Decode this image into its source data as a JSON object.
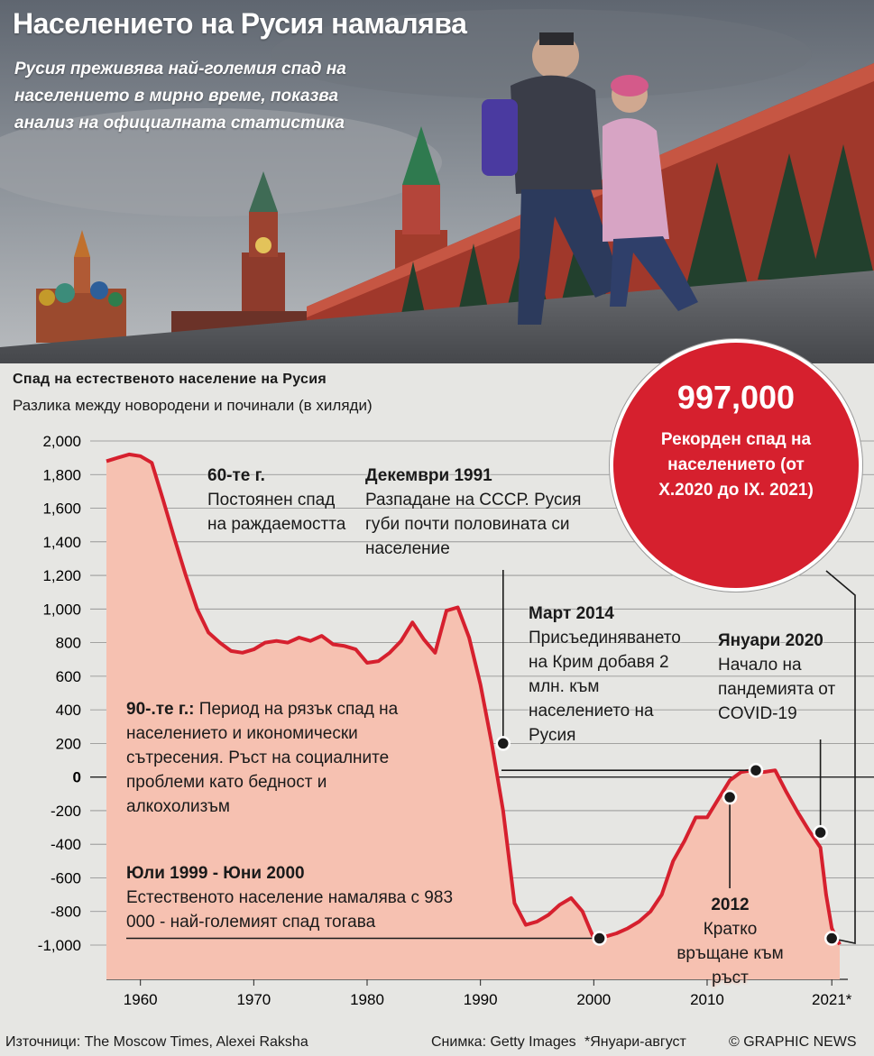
{
  "header": {
    "title": "Населението на Русия намалява",
    "subtitle": "Русия преживява най-големия спад на населението в мирно време, показва анализ на официалната статистика"
  },
  "record": {
    "value": "997,000",
    "text": "Рекорден спад на населението (от X.2020 до IX. 2021)"
  },
  "annotations": {
    "sixties": {
      "title": "60-те г.",
      "text": "Постоянен спад на раждаемостта"
    },
    "dec1991": {
      "title": "Декември 1991",
      "text": "Разпадане на СССР. Русия губи почти половината си население"
    },
    "mar2014": {
      "title": "Март 2014",
      "text": "Присъединяването на Крим добавя 2 млн. към населението на Русия"
    },
    "jan2020": {
      "title": "Януари 2020",
      "text": "Начало на пандемията от COVID-19"
    },
    "nineties": {
      "title": "90-.те г.:",
      "text": "Период на рязък спад на населението и икономически сътресения. Ръст на социалните проблеми като бедност и алкохолизъм"
    },
    "jul1999": {
      "title": "Юли 1999 - Юни 2000",
      "text": "Естественото население намалява с 983 000 - най-големият спад тогава"
    },
    "y2012": {
      "title": "2012",
      "text": "Кратко връщане към ръст"
    }
  },
  "footer": {
    "sources": "Източници: The Moscow Times, Alexei Raksha",
    "photo": "Снимка: Getty Images",
    "note": "*Януари-август",
    "copyright": "© GRAPHIC NEWS"
  },
  "colors": {
    "line": "#d6202e",
    "fill": "#f6c1b1",
    "circle": "#d6202e",
    "background": "#e6e6e3"
  },
  "chart_data": {
    "type": "area",
    "title": "Спад на естественото население на Русия",
    "subtitle": "Разлика между новородени и починали (в хиляди)",
    "xlabel": "",
    "ylabel": "",
    "xlim": [
      1957,
      2021.7
    ],
    "ylim": [
      -1000,
      2000
    ],
    "yticks": [
      2000,
      1800,
      1600,
      1400,
      1200,
      1000,
      800,
      600,
      400,
      200,
      0,
      -200,
      -400,
      -600,
      -800,
      -1000
    ],
    "ytick_labels": [
      "2,000",
      "1,800",
      "1,600",
      "1,400",
      "1,200",
      "1,000",
      "800",
      "600",
      "400",
      "200",
      "0",
      "-200",
      "-400",
      "-600",
      "-800",
      "-1,000"
    ],
    "xtick_labels": [
      "1960",
      "1970",
      "1980",
      "1990",
      "2000",
      "2010",
      "2021*"
    ],
    "xtick_values": [
      1960,
      1970,
      1980,
      1990,
      2000,
      2010,
      2021
    ],
    "grid": true,
    "series": [
      {
        "x": [
          1957,
          1958,
          1959,
          1960,
          1961,
          1962,
          1963,
          1964,
          1965,
          1966,
          1967,
          1968,
          1969,
          1970,
          1971,
          1972,
          1973,
          1974,
          1975,
          1976,
          1977,
          1978,
          1979,
          1980,
          1981,
          1982,
          1983,
          1984,
          1985,
          1986,
          1987,
          1988,
          1989,
          1990,
          1991,
          1992,
          1993,
          1994,
          1995,
          1996,
          1997,
          1998,
          1999,
          2000,
          2001,
          2002,
          2003,
          2004,
          2005,
          2006,
          2007,
          2008,
          2009,
          2010,
          2011,
          2012,
          2013,
          2014,
          2015,
          2016,
          2017,
          2018,
          2019,
          2020,
          2020.5,
          2021,
          2021.7
        ],
        "values": [
          1880,
          1900,
          1920,
          1910,
          1870,
          1650,
          1420,
          1200,
          1000,
          860,
          800,
          750,
          740,
          760,
          800,
          810,
          800,
          830,
          810,
          840,
          790,
          780,
          760,
          680,
          690,
          740,
          810,
          920,
          820,
          740,
          990,
          1010,
          830,
          550,
          200,
          -200,
          -750,
          -880,
          -860,
          -820,
          -760,
          -720,
          -800,
          -960,
          -950,
          -930,
          -900,
          -860,
          -800,
          -700,
          -500,
          -380,
          -240,
          -240,
          -130,
          -20,
          30,
          40,
          30,
          40,
          -90,
          -210,
          -320,
          -420,
          -700,
          -900,
          -997
        ],
        "markers": [
          {
            "x": 1992,
            "y": 200
          },
          {
            "x": 2000.5,
            "y": -960
          },
          {
            "x": 2012,
            "y": -120
          },
          {
            "x": 2014.3,
            "y": 40
          },
          {
            "x": 2020,
            "y": -330
          },
          {
            "x": 2021,
            "y": -960
          }
        ]
      }
    ]
  }
}
